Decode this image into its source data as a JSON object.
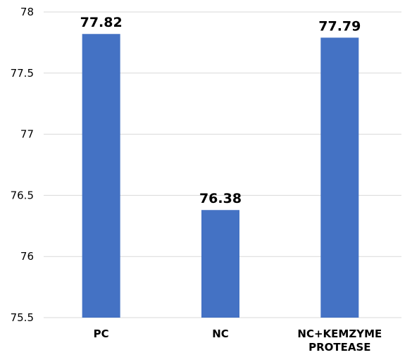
{
  "chart_data": {
    "type": "bar",
    "categories": [
      [
        "PC"
      ],
      [
        "NC"
      ],
      [
        "NC+KEMZYME",
        "PROTEASE"
      ]
    ],
    "series": [
      {
        "values": [
          77.82,
          76.38,
          77.79
        ],
        "color": "#4472c4"
      }
    ],
    "data_labels": [
      "77.82",
      "76.38",
      "77.79"
    ],
    "yticks": [
      "75.5",
      "76",
      "76.5",
      "77",
      "77.5",
      "78"
    ],
    "ylim": [
      75.5,
      78
    ],
    "grid": true,
    "legend": "none"
  }
}
